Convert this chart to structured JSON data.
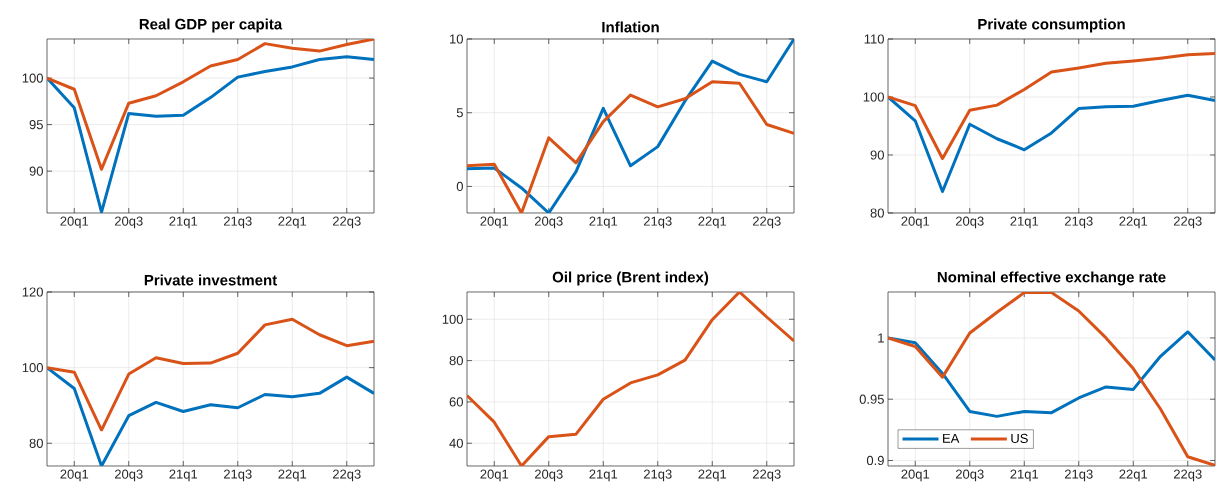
{
  "chart_data": [
    {
      "type": "line",
      "title": "Real GDP per capita",
      "categories": [
        null,
        "20q1",
        null,
        "20q3",
        null,
        "21q1",
        null,
        "21q3",
        null,
        "22q1",
        null,
        "22q3",
        null
      ],
      "ylim": [
        85.5,
        104.2
      ],
      "yticks": [
        90,
        95,
        100
      ],
      "grid": true,
      "series": [
        {
          "color": "#0072bd",
          "values": [
            100,
            96.8,
            85.6,
            96.2,
            95.9,
            96.0,
            97.9,
            100.1,
            100.7,
            101.2,
            102.0,
            102.3,
            102.0
          ]
        },
        {
          "color": "#d95319",
          "values": [
            100,
            98.8,
            90.2,
            97.3,
            98.1,
            99.6,
            101.3,
            102.0,
            103.7,
            103.2,
            102.9,
            103.6,
            104.2
          ]
        }
      ]
    },
    {
      "type": "line",
      "title": "Inflation",
      "categories": [
        null,
        "20q1",
        null,
        "20q3",
        null,
        "21q1",
        null,
        "21q3",
        null,
        "22q1",
        null,
        "22q3",
        null
      ],
      "ylim": [
        -1.8,
        10
      ],
      "yticks": [
        0,
        5,
        10
      ],
      "grid": true,
      "series": [
        {
          "color": "#0072bd",
          "values": [
            1.2,
            1.25,
            -0.1,
            -1.8,
            1.0,
            5.3,
            1.4,
            2.7,
            5.8,
            8.5,
            7.6,
            7.1,
            10.0
          ]
        },
        {
          "color": "#d95319",
          "values": [
            1.4,
            1.5,
            -1.8,
            3.3,
            1.6,
            4.4,
            6.2,
            5.4,
            5.95,
            7.1,
            7.0,
            4.2,
            3.6
          ]
        }
      ]
    },
    {
      "type": "line",
      "title": "Private consumption",
      "categories": [
        null,
        "20q1",
        null,
        "20q3",
        null,
        "21q1",
        null,
        "21q3",
        null,
        "22q1",
        null,
        "22q3",
        null
      ],
      "ylim": [
        80,
        110
      ],
      "yticks": [
        80,
        90,
        100,
        110
      ],
      "grid": true,
      "series": [
        {
          "color": "#0072bd",
          "values": [
            100,
            95.9,
            83.7,
            95.3,
            92.8,
            90.9,
            93.8,
            98.0,
            98.3,
            98.4,
            99.4,
            100.3,
            99.4
          ]
        },
        {
          "color": "#d95319",
          "values": [
            100,
            98.5,
            89.4,
            97.7,
            98.6,
            101.3,
            104.3,
            105.0,
            105.8,
            106.2,
            106.7,
            107.3,
            107.5
          ]
        }
      ]
    },
    {
      "type": "line",
      "title": "Private investment",
      "categories": [
        null,
        "20q1",
        null,
        "20q3",
        null,
        "21q1",
        null,
        "21q3",
        null,
        "22q1",
        null,
        "22q3",
        null
      ],
      "ylim": [
        74,
        120
      ],
      "yticks": [
        80,
        100,
        120
      ],
      "grid": true,
      "series": [
        {
          "color": "#0072bd",
          "values": [
            100,
            94.5,
            74.0,
            87.3,
            90.8,
            88.4,
            90.2,
            89.4,
            92.9,
            92.3,
            93.2,
            97.5,
            93.2
          ]
        },
        {
          "color": "#d95319",
          "values": [
            100,
            98.8,
            83.5,
            98.3,
            102.6,
            101.1,
            101.2,
            103.8,
            111.3,
            112.8,
            108.7,
            105.8,
            107.0
          ]
        }
      ]
    },
    {
      "type": "line",
      "title": "Oil price (Brent index)",
      "categories": [
        null,
        "20q1",
        null,
        "20q3",
        null,
        "21q1",
        null,
        "21q3",
        null,
        "22q1",
        null,
        "22q3",
        null
      ],
      "ylim": [
        29,
        113.2
      ],
      "yticks": [
        40,
        60,
        80,
        100
      ],
      "grid": true,
      "series": [
        {
          "color": "#d95319",
          "values": [
            63.1,
            50.2,
            29.0,
            43.2,
            44.4,
            61.3,
            69.2,
            73.1,
            80.2,
            99.8,
            113.2,
            101.1,
            89.5
          ]
        }
      ]
    },
    {
      "type": "line",
      "title": "Nominal effective exchange rate",
      "categories": [
        null,
        "20q1",
        null,
        "20q3",
        null,
        "21q1",
        null,
        "21q3",
        null,
        "22q1",
        null,
        "22q3",
        null
      ],
      "ylim": [
        0.8955,
        1.0375
      ],
      "yticks": [
        0.9,
        0.95,
        1
      ],
      "grid": true,
      "legend": "bottom left",
      "series": [
        {
          "name": "EA",
          "color": "#0072bd",
          "values": [
            1.0,
            0.996,
            0.971,
            0.94,
            0.936,
            0.94,
            0.939,
            0.951,
            0.96,
            0.958,
            0.985,
            1.005,
            0.982
          ]
        },
        {
          "name": "US",
          "color": "#d95319",
          "values": [
            1.0,
            0.993,
            0.968,
            1.004,
            1.021,
            1.037,
            1.037,
            1.022,
            1.0,
            0.975,
            0.942,
            0.903,
            0.896
          ]
        }
      ]
    }
  ]
}
